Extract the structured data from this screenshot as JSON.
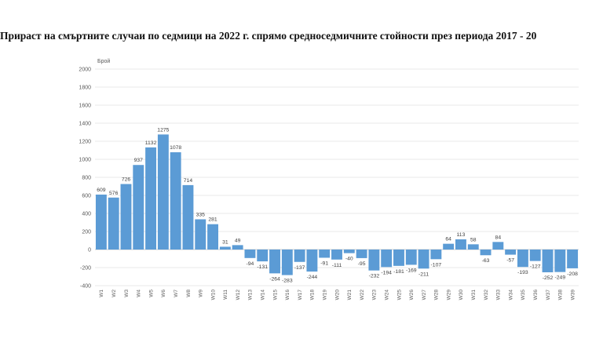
{
  "chart_data": {
    "type": "bar",
    "title": "Прираст на смъртните случаи по седмици на 2022 г. спрямо средноседмичните стойности през периода 2017 - 20",
    "ylabel": "Брой",
    "xlabel": "",
    "ylim": [
      -400,
      2000
    ],
    "yticks": [
      "-400",
      "-200",
      "0",
      "200",
      "400",
      "600",
      "800",
      "1000",
      "1200",
      "1400",
      "1600",
      "1800",
      "2000"
    ],
    "ytick_values": [
      -400,
      -200,
      0,
      200,
      400,
      600,
      800,
      1000,
      1200,
      1400,
      1600,
      1800,
      2000
    ],
    "grid": true,
    "bar_color": "#5b9bd5",
    "categories": [
      "W1",
      "W2",
      "W3",
      "W4",
      "W5",
      "W6",
      "W7",
      "W8",
      "W9",
      "W10",
      "W11",
      "W12",
      "W13",
      "W14",
      "W15",
      "W16",
      "W17",
      "W18",
      "W19",
      "W20",
      "W21",
      "W22",
      "W23",
      "W24",
      "W25",
      "W26",
      "W27",
      "W28",
      "W29",
      "W30",
      "W31",
      "W32",
      "W33",
      "W34",
      "W35",
      "W36",
      "W37",
      "W38",
      "W39"
    ],
    "values": [
      609,
      576,
      726,
      937,
      1132,
      1275,
      1078,
      714,
      335,
      281,
      31,
      49,
      -94,
      -131,
      -264,
      -283,
      -137,
      -244,
      -91,
      -111,
      -40,
      -95,
      -232,
      -194,
      -181,
      -169,
      -211,
      -107,
      64,
      113,
      58,
      -63,
      84,
      -57,
      -193,
      -127,
      -252,
      -249,
      -208
    ],
    "labels": [
      "609",
      "576",
      "726",
      "937",
      "1132",
      "1275",
      "1078",
      "714",
      "335",
      "281",
      "31",
      "49",
      "-94",
      "-131",
      "-264",
      "-283",
      "-137",
      "-244",
      "-91",
      "-111",
      "-40",
      "-95",
      "-232",
      "-194",
      "-181",
      "-169",
      "-211",
      "-107",
      "64",
      "113",
      "58",
      "-63",
      "84",
      "-57",
      "-193",
      "-127",
      "-252",
      "-249",
      "-208"
    ]
  }
}
